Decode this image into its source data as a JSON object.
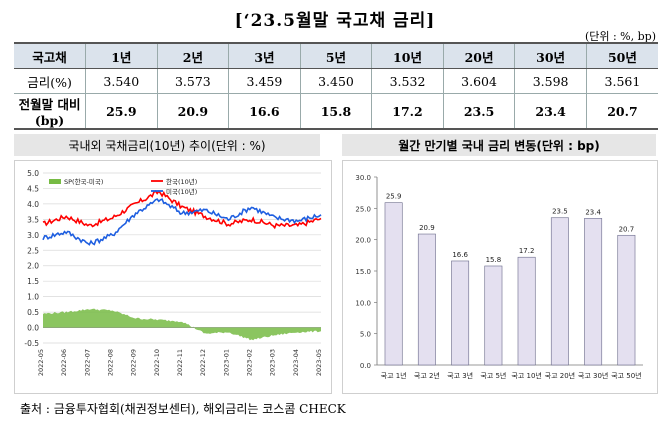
{
  "title": "[‘23.5월말 국고채 금리]",
  "unit": "(단위 : %, bp)",
  "table": {
    "headers": [
      "국고채",
      "1년",
      "2년",
      "3년",
      "5년",
      "10년",
      "20년",
      "30년",
      "50년"
    ],
    "rows": [
      {
        "label": "금리(%)",
        "values": [
          "3.540",
          "3.573",
          "3.459",
          "3.450",
          "3.532",
          "3.604",
          "3.598",
          "3.561"
        ]
      },
      {
        "label": "전월말 대비(bp)",
        "values": [
          "25.9",
          "20.9",
          "16.6",
          "15.8",
          "17.2",
          "23.5",
          "23.4",
          "20.7"
        ]
      }
    ]
  },
  "left_chart_title": "국내외 국채금리(10년) 추이(단위 : %)",
  "right_chart_title": "월간 만기별 국내 금리 변동(단위 : bp)",
  "source": "출처 : 금융투자협회(채권정보센터), 해외금리는 코스콤 CHECK",
  "chart_data": [
    {
      "type": "line",
      "title": "",
      "xlabel": "",
      "ylabel": "",
      "ylim": [
        -0.5,
        5.0
      ],
      "yticks": [
        "5.0",
        "4.5",
        "4.0",
        "3.5",
        "3.0",
        "2.5",
        "2.0",
        "1.5",
        "1.0",
        "0.5",
        "0.0",
        "-0.5"
      ],
      "x": [
        "2022-05",
        "2022-06",
        "2022-07",
        "2022-08",
        "2022-09",
        "2022-10",
        "2022-11",
        "2022-12",
        "2023-01",
        "2023-02",
        "2023-03",
        "2023-04",
        "2023-05"
      ],
      "legend_position": "top-left",
      "series": [
        {
          "name": "한국(10년)",
          "color": "#ff0000",
          "kind": "line",
          "values": [
            3.35,
            3.6,
            3.3,
            3.55,
            4.0,
            4.4,
            3.9,
            3.6,
            3.35,
            3.5,
            3.3,
            3.3,
            3.53
          ]
        },
        {
          "name": "미국(10년)",
          "color": "#1f5fe0",
          "kind": "line",
          "values": [
            2.9,
            3.1,
            2.7,
            3.0,
            3.7,
            4.15,
            3.7,
            3.8,
            3.5,
            3.9,
            3.55,
            3.45,
            3.65
          ]
        },
        {
          "name": "SP(한국-미국)",
          "color": "#77bb44",
          "kind": "area",
          "values": [
            0.45,
            0.5,
            0.6,
            0.55,
            0.3,
            0.25,
            0.2,
            -0.2,
            -0.15,
            -0.4,
            -0.25,
            -0.15,
            -0.12
          ]
        }
      ]
    },
    {
      "type": "bar",
      "title": "",
      "xlabel": "",
      "ylabel": "",
      "ylim": [
        0,
        30
      ],
      "yticks": [
        "30.0",
        "25.0",
        "20.0",
        "15.0",
        "10.0",
        "5.0",
        "0.0"
      ],
      "categories": [
        "국고 1년",
        "국고 2년",
        "국고 3년",
        "국고 5년",
        "국고 10년",
        "국고 20년",
        "국고 30년",
        "국고 50년"
      ],
      "values": [
        25.9,
        20.9,
        16.6,
        15.8,
        17.2,
        23.5,
        23.4,
        20.7
      ],
      "value_labels": [
        "25.9",
        "20.9",
        "16.6",
        "15.8",
        "17.2",
        "23.5",
        "23.4",
        "20.7"
      ],
      "bar_color": "#e4e0f0"
    }
  ]
}
